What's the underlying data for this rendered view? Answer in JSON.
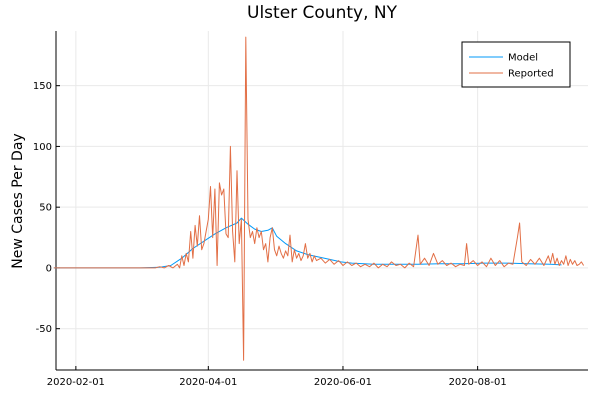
{
  "chart_data": {
    "type": "line",
    "title": "Ulster County, NY",
    "xlabel": "",
    "ylabel": "New Cases Per Day",
    "x_type": "date",
    "xlim": [
      "2020-01-23",
      "2020-09-20"
    ],
    "ylim": [
      -84,
      195
    ],
    "x_ticks": [
      "2020-02-01",
      "2020-04-01",
      "2020-06-01",
      "2020-08-01"
    ],
    "y_ticks": [
      -50,
      0,
      50,
      100,
      150
    ],
    "grid": true,
    "legend_position": "top-right",
    "series": [
      {
        "name": "Model",
        "color": "#009AFA",
        "points": [
          [
            "2020-01-22",
            0
          ],
          [
            "2020-02-15",
            0
          ],
          [
            "2020-03-01",
            0
          ],
          [
            "2020-03-10",
            0.5
          ],
          [
            "2020-03-15",
            2
          ],
          [
            "2020-03-20",
            8
          ],
          [
            "2020-03-25",
            16
          ],
          [
            "2020-03-30",
            22
          ],
          [
            "2020-04-04",
            28
          ],
          [
            "2020-04-09",
            33
          ],
          [
            "2020-04-14",
            37
          ],
          [
            "2020-04-16",
            41
          ],
          [
            "2020-04-19",
            36
          ],
          [
            "2020-04-22",
            32
          ],
          [
            "2020-04-25",
            30
          ],
          [
            "2020-04-28",
            31
          ],
          [
            "2020-04-30",
            33
          ],
          [
            "2020-05-02",
            26
          ],
          [
            "2020-05-06",
            20
          ],
          [
            "2020-05-11",
            14
          ],
          [
            "2020-05-16",
            11
          ],
          [
            "2020-05-21",
            9
          ],
          [
            "2020-05-26",
            7
          ],
          [
            "2020-05-31",
            5
          ],
          [
            "2020-06-05",
            4
          ],
          [
            "2020-06-15",
            3
          ],
          [
            "2020-06-25",
            3
          ],
          [
            "2020-07-05",
            3
          ],
          [
            "2020-07-15",
            3.5
          ],
          [
            "2020-07-25",
            3.5
          ],
          [
            "2020-08-04",
            4
          ],
          [
            "2020-08-14",
            4
          ],
          [
            "2020-08-24",
            3.5
          ],
          [
            "2020-09-03",
            3
          ],
          [
            "2020-09-08",
            2.5
          ]
        ]
      },
      {
        "name": "Reported",
        "color": "#E26F46",
        "points": [
          [
            "2020-01-22",
            0
          ],
          [
            "2020-03-08",
            0
          ],
          [
            "2020-03-10",
            1
          ],
          [
            "2020-03-12",
            0
          ],
          [
            "2020-03-14",
            2
          ],
          [
            "2020-03-16",
            0
          ],
          [
            "2020-03-18",
            3
          ],
          [
            "2020-03-19",
            0
          ],
          [
            "2020-03-20",
            10
          ],
          [
            "2020-03-21",
            2
          ],
          [
            "2020-03-22",
            12
          ],
          [
            "2020-03-23",
            5
          ],
          [
            "2020-03-24",
            30
          ],
          [
            "2020-03-25",
            8
          ],
          [
            "2020-03-26",
            35
          ],
          [
            "2020-03-27",
            18
          ],
          [
            "2020-03-28",
            43
          ],
          [
            "2020-03-29",
            15
          ],
          [
            "2020-03-30",
            20
          ],
          [
            "2020-03-31",
            30
          ],
          [
            "2020-04-01",
            40
          ],
          [
            "2020-04-02",
            67
          ],
          [
            "2020-04-03",
            25
          ],
          [
            "2020-04-04",
            65
          ],
          [
            "2020-04-05",
            2
          ],
          [
            "2020-04-06",
            70
          ],
          [
            "2020-04-07",
            60
          ],
          [
            "2020-04-08",
            65
          ],
          [
            "2020-04-09",
            28
          ],
          [
            "2020-04-10",
            25
          ],
          [
            "2020-04-11",
            100
          ],
          [
            "2020-04-12",
            30
          ],
          [
            "2020-04-13",
            5
          ],
          [
            "2020-04-14",
            80
          ],
          [
            "2020-04-15",
            20
          ],
          [
            "2020-04-16",
            40
          ],
          [
            "2020-04-17",
            -76
          ],
          [
            "2020-04-18",
            190
          ],
          [
            "2020-04-19",
            40
          ],
          [
            "2020-04-20",
            25
          ],
          [
            "2020-04-21",
            30
          ],
          [
            "2020-04-22",
            20
          ],
          [
            "2020-04-23",
            33
          ],
          [
            "2020-04-24",
            25
          ],
          [
            "2020-04-25",
            30
          ],
          [
            "2020-04-26",
            15
          ],
          [
            "2020-04-27",
            20
          ],
          [
            "2020-04-28",
            5
          ],
          [
            "2020-04-29",
            25
          ],
          [
            "2020-04-30",
            33
          ],
          [
            "2020-05-01",
            15
          ],
          [
            "2020-05-02",
            10
          ],
          [
            "2020-05-03",
            18
          ],
          [
            "2020-05-04",
            12
          ],
          [
            "2020-05-05",
            8
          ],
          [
            "2020-05-06",
            14
          ],
          [
            "2020-05-07",
            10
          ],
          [
            "2020-05-08",
            27
          ],
          [
            "2020-05-09",
            5
          ],
          [
            "2020-05-10",
            15
          ],
          [
            "2020-05-11",
            8
          ],
          [
            "2020-05-12",
            12
          ],
          [
            "2020-05-13",
            6
          ],
          [
            "2020-05-14",
            10
          ],
          [
            "2020-05-15",
            20
          ],
          [
            "2020-05-16",
            8
          ],
          [
            "2020-05-17",
            12
          ],
          [
            "2020-05-18",
            5
          ],
          [
            "2020-05-19",
            10
          ],
          [
            "2020-05-20",
            6
          ],
          [
            "2020-05-22",
            8
          ],
          [
            "2020-05-24",
            4
          ],
          [
            "2020-05-26",
            7
          ],
          [
            "2020-05-28",
            3
          ],
          [
            "2020-05-30",
            6
          ],
          [
            "2020-06-01",
            2
          ],
          [
            "2020-06-03",
            5
          ],
          [
            "2020-06-05",
            2
          ],
          [
            "2020-06-07",
            4
          ],
          [
            "2020-06-09",
            1
          ],
          [
            "2020-06-11",
            3
          ],
          [
            "2020-06-13",
            1
          ],
          [
            "2020-06-15",
            4
          ],
          [
            "2020-06-17",
            0
          ],
          [
            "2020-06-19",
            3
          ],
          [
            "2020-06-21",
            1
          ],
          [
            "2020-06-23",
            5
          ],
          [
            "2020-06-25",
            2
          ],
          [
            "2020-06-27",
            3
          ],
          [
            "2020-06-29",
            0
          ],
          [
            "2020-07-01",
            4
          ],
          [
            "2020-07-03",
            1
          ],
          [
            "2020-07-05",
            27
          ],
          [
            "2020-07-06",
            3
          ],
          [
            "2020-07-08",
            8
          ],
          [
            "2020-07-10",
            2
          ],
          [
            "2020-07-12",
            12
          ],
          [
            "2020-07-14",
            3
          ],
          [
            "2020-07-16",
            6
          ],
          [
            "2020-07-18",
            2
          ],
          [
            "2020-07-20",
            4
          ],
          [
            "2020-07-22",
            1
          ],
          [
            "2020-07-24",
            3
          ],
          [
            "2020-07-26",
            2
          ],
          [
            "2020-07-27",
            20
          ],
          [
            "2020-07-28",
            3
          ],
          [
            "2020-07-30",
            6
          ],
          [
            "2020-08-01",
            2
          ],
          [
            "2020-08-03",
            5
          ],
          [
            "2020-08-05",
            1
          ],
          [
            "2020-08-07",
            8
          ],
          [
            "2020-08-09",
            2
          ],
          [
            "2020-08-11",
            6
          ],
          [
            "2020-08-13",
            1
          ],
          [
            "2020-08-15",
            4
          ],
          [
            "2020-08-17",
            3
          ],
          [
            "2020-08-19",
            25
          ],
          [
            "2020-08-20",
            37
          ],
          [
            "2020-08-21",
            5
          ],
          [
            "2020-08-23",
            2
          ],
          [
            "2020-08-25",
            7
          ],
          [
            "2020-08-27",
            3
          ],
          [
            "2020-08-29",
            8
          ],
          [
            "2020-08-31",
            2
          ],
          [
            "2020-09-02",
            10
          ],
          [
            "2020-09-03",
            4
          ],
          [
            "2020-09-04",
            12
          ],
          [
            "2020-09-05",
            3
          ],
          [
            "2020-09-06",
            8
          ],
          [
            "2020-09-07",
            2
          ],
          [
            "2020-09-08",
            6
          ],
          [
            "2020-09-09",
            3
          ],
          [
            "2020-09-10",
            10
          ],
          [
            "2020-09-11",
            2
          ],
          [
            "2020-09-12",
            7
          ],
          [
            "2020-09-13",
            3
          ],
          [
            "2020-09-14",
            6
          ],
          [
            "2020-09-15",
            2
          ],
          [
            "2020-09-16",
            3
          ],
          [
            "2020-09-17",
            5
          ],
          [
            "2020-09-18",
            2
          ]
        ]
      }
    ]
  }
}
